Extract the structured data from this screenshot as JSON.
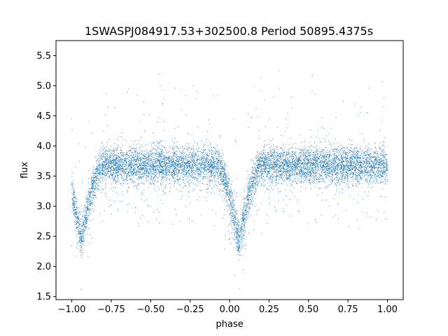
{
  "chart_data": {
    "type": "scatter",
    "title": "1SWASPJ084917.53+302500.8 Period 50895.4375s",
    "xlabel": "phase",
    "ylabel": "flux",
    "xlim": [
      -1.1,
      1.1
    ],
    "ylim": [
      1.45,
      5.75
    ],
    "xticks": [
      "−1.00",
      "−0.75",
      "−0.50",
      "−0.25",
      "0.00",
      "0.25",
      "0.50",
      "0.75",
      "1.00"
    ],
    "xtick_values": [
      -1.0,
      -0.75,
      -0.5,
      -0.25,
      0.0,
      0.25,
      0.5,
      0.75,
      1.0
    ],
    "yticks": [
      "1.5",
      "2.0",
      "2.5",
      "3.0",
      "3.5",
      "4.0",
      "4.5",
      "5.0",
      "5.5"
    ],
    "ytick_values": [
      1.5,
      2.0,
      2.5,
      3.0,
      3.5,
      4.0,
      4.5,
      5.0,
      5.5
    ],
    "grid": false,
    "legend": "none",
    "marker_color": "#1f77b4",
    "series": [
      {
        "x_range": [
          -1.0,
          1.0
        ],
        "baseline_flux": 3.68,
        "scatter_sigma": 0.15,
        "eclipse_minima": [
          {
            "phase": -0.94,
            "flux": 2.45
          },
          {
            "phase": 0.06,
            "flux": 2.4
          }
        ],
        "eclipse_half_width": 0.14,
        "x": [
          -1.0,
          -0.98,
          -0.96,
          -0.94,
          -0.92,
          -0.9,
          -0.88,
          -0.85,
          -0.82,
          -0.8,
          -0.75,
          -0.6,
          -0.45,
          -0.3,
          -0.15,
          -0.05,
          -0.02,
          0.0,
          0.02,
          0.04,
          0.06,
          0.08,
          0.1,
          0.12,
          0.15,
          0.18,
          0.2,
          0.25,
          0.4,
          0.55,
          0.7,
          0.85,
          0.95,
          0.98,
          1.0
        ],
        "y": [
          3.1,
          2.8,
          2.6,
          2.45,
          2.55,
          2.8,
          3.0,
          3.3,
          3.6,
          3.68,
          3.7,
          3.7,
          3.7,
          3.68,
          3.66,
          3.6,
          3.35,
          3.1,
          2.8,
          2.55,
          2.4,
          2.5,
          2.75,
          3.0,
          3.35,
          3.6,
          3.68,
          3.7,
          3.7,
          3.7,
          3.68,
          3.66,
          3.62,
          3.45,
          3.2
        ]
      }
    ]
  }
}
